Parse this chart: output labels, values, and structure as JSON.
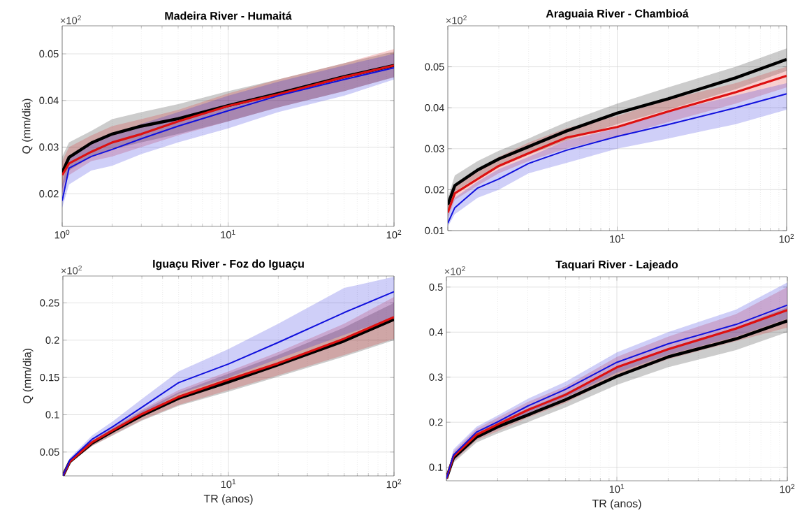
{
  "chart_data": [
    {
      "type": "line",
      "title": "Madeira River - Humaitá",
      "ylabel": "Q (mm/dia)",
      "annotations": [
        "×10$^{2}$"
      ],
      "log": "x",
      "grid": true,
      "xlim": [
        1,
        100
      ],
      "ylim": [
        0.013,
        0.056
      ],
      "xticks": [
        {
          "value": 1,
          "label": "10$^{0}$"
        },
        {
          "value": 10,
          "label": "10$^{1}$"
        },
        {
          "value": 100,
          "label": "10$^{2}$"
        }
      ],
      "yticks": [
        0.02,
        0.03,
        0.04,
        0.05
      ],
      "x": [
        1,
        1.1,
        1.5,
        2,
        3,
        5,
        10,
        20,
        50,
        100
      ],
      "series": [
        {
          "color": "#000000",
          "values": [
            0.0245,
            0.0278,
            0.0309,
            0.0328,
            0.0345,
            0.0361,
            0.0389,
            0.0415,
            0.0451,
            0.0475
          ],
          "lower": [
            0.021,
            0.025,
            0.028,
            0.0295,
            0.031,
            0.0328,
            0.0355,
            0.0385,
            0.042,
            0.045
          ],
          "upper": [
            0.028,
            0.031,
            0.0335,
            0.036,
            0.0375,
            0.0392,
            0.042,
            0.0445,
            0.048,
            0.0505
          ]
        },
        {
          "color": "#dd1111",
          "values": [
            0.024,
            0.0265,
            0.029,
            0.031,
            0.0328,
            0.0355,
            0.0388,
            0.0413,
            0.045,
            0.0475
          ],
          "lower": [
            0.02,
            0.024,
            0.027,
            0.028,
            0.03,
            0.0325,
            0.0355,
            0.0385,
            0.042,
            0.045
          ],
          "upper": [
            0.027,
            0.03,
            0.0325,
            0.0345,
            0.036,
            0.038,
            0.0415,
            0.0445,
            0.048,
            0.051
          ]
        },
        {
          "color": "#1010dd",
          "values": [
            0.0185,
            0.0255,
            0.028,
            0.0295,
            0.0318,
            0.0345,
            0.0378,
            0.041,
            0.0445,
            0.047
          ],
          "lower": [
            0.017,
            0.022,
            0.025,
            0.026,
            0.0285,
            0.031,
            0.034,
            0.0375,
            0.041,
            0.0445
          ],
          "upper": [
            0.022,
            0.028,
            0.031,
            0.0325,
            0.035,
            0.0375,
            0.041,
            0.044,
            0.0475,
            0.05
          ]
        }
      ]
    },
    {
      "type": "line",
      "title": "Araguaia River - Chambioá",
      "annotations": [
        "×10$^{2}$"
      ],
      "log": "x",
      "grid": true,
      "xlim": [
        1,
        100
      ],
      "ylim": [
        0.01,
        0.06
      ],
      "xticks": [
        {
          "value": 1,
          "label": null
        },
        {
          "value": 10,
          "label": "10$^{1}$"
        },
        {
          "value": 100,
          "label": "10$^{2}$"
        }
      ],
      "yticks": [
        0.01,
        0.02,
        0.03,
        0.04,
        0.05
      ],
      "x": [
        1,
        1.1,
        1.5,
        2,
        3,
        5,
        10,
        20,
        50,
        100
      ],
      "series": [
        {
          "color": "#000000",
          "values": [
            0.0163,
            0.021,
            0.0248,
            0.0275,
            0.0305,
            0.0343,
            0.0387,
            0.0422,
            0.0473,
            0.0518
          ],
          "lower": [
            0.015,
            0.0195,
            0.023,
            0.0255,
            0.0285,
            0.032,
            0.036,
            0.0395,
            0.0445,
            0.049
          ],
          "upper": [
            0.018,
            0.0235,
            0.027,
            0.0295,
            0.0325,
            0.0365,
            0.041,
            0.045,
            0.05,
            0.0545
          ]
        },
        {
          "color": "#dd1111",
          "values": [
            0.0144,
            0.0191,
            0.0226,
            0.0258,
            0.0289,
            0.0327,
            0.0353,
            0.0391,
            0.0438,
            0.0478
          ],
          "lower": [
            0.013,
            0.0175,
            0.021,
            0.024,
            0.027,
            0.03,
            0.033,
            0.0365,
            0.041,
            0.045
          ],
          "upper": [
            0.016,
            0.021,
            0.025,
            0.028,
            0.0315,
            0.035,
            0.038,
            0.042,
            0.046,
            0.05
          ]
        },
        {
          "color": "#1010dd",
          "values": [
            0.0118,
            0.0156,
            0.0204,
            0.0226,
            0.0264,
            0.0296,
            0.033,
            0.0359,
            0.04,
            0.0434
          ],
          "lower": [
            0.011,
            0.014,
            0.018,
            0.02,
            0.024,
            0.0265,
            0.03,
            0.0325,
            0.036,
            0.0395
          ],
          "upper": [
            0.014,
            0.018,
            0.022,
            0.025,
            0.028,
            0.032,
            0.035,
            0.039,
            0.043,
            0.046
          ]
        }
      ]
    },
    {
      "type": "line",
      "title": "Iguaçu River - Foz do Iguaçu",
      "xlabel": "TR (anos)",
      "ylabel": "Q (mm/dia)",
      "annotations": [
        "×10$^{2}$"
      ],
      "log": "x",
      "grid": true,
      "xlim": [
        1,
        100
      ],
      "ylim": [
        0.018,
        0.286
      ],
      "xticks": [
        {
          "value": 1,
          "label": null
        },
        {
          "value": 10,
          "label": "10$^{1}$"
        },
        {
          "value": 100,
          "label": "10$^{2}$"
        }
      ],
      "yticks": [
        0.05,
        0.1,
        0.15,
        0.2,
        0.25
      ],
      "x": [
        1,
        1.1,
        1.5,
        2,
        3,
        5,
        10,
        20,
        50,
        100
      ],
      "series": [
        {
          "color": "#000000",
          "values": [
            0.018,
            0.037,
            0.062,
            0.078,
            0.099,
            0.122,
            0.144,
            0.167,
            0.199,
            0.228
          ],
          "lower": [
            0.018,
            0.035,
            0.058,
            0.072,
            0.092,
            0.112,
            0.131,
            0.151,
            0.178,
            0.2
          ],
          "upper": [
            0.019,
            0.039,
            0.065,
            0.082,
            0.105,
            0.13,
            0.155,
            0.18,
            0.217,
            0.25
          ]
        },
        {
          "color": "#dd1111",
          "values": [
            0.018,
            0.037,
            0.063,
            0.079,
            0.101,
            0.124,
            0.147,
            0.169,
            0.202,
            0.231
          ],
          "lower": [
            0.018,
            0.035,
            0.058,
            0.073,
            0.093,
            0.113,
            0.133,
            0.153,
            0.18,
            0.202
          ],
          "upper": [
            0.019,
            0.039,
            0.066,
            0.083,
            0.107,
            0.133,
            0.158,
            0.184,
            0.222,
            0.258
          ]
        },
        {
          "color": "#1010dd",
          "values": [
            0.018,
            0.039,
            0.067,
            0.084,
            0.11,
            0.143,
            0.168,
            0.197,
            0.237,
            0.265
          ],
          "lower": [
            0.018,
            0.036,
            0.062,
            0.077,
            0.1,
            0.128,
            0.15,
            0.175,
            0.207,
            0.23
          ],
          "upper": [
            0.02,
            0.042,
            0.072,
            0.091,
            0.121,
            0.158,
            0.188,
            0.222,
            0.27,
            0.285
          ]
        }
      ]
    },
    {
      "type": "line",
      "title": "Taquari River - Lajeado",
      "xlabel": "TR (anos)",
      "annotations": [
        "×10$^{2}$"
      ],
      "log": "x",
      "grid": true,
      "xlim": [
        1,
        100
      ],
      "ylim": [
        0.07,
        0.523
      ],
      "xticks": [
        {
          "value": 1,
          "label": null
        },
        {
          "value": 10,
          "label": "10$^{1}$"
        },
        {
          "value": 100,
          "label": "10$^{2}$"
        }
      ],
      "yticks": [
        0.1,
        0.2,
        0.3,
        0.4,
        0.5
      ],
      "x": [
        1,
        1.1,
        1.5,
        2,
        3,
        5,
        10,
        20,
        50,
        100
      ],
      "series": [
        {
          "color": "#000000",
          "values": [
            0.075,
            0.121,
            0.167,
            0.19,
            0.216,
            0.25,
            0.302,
            0.345,
            0.385,
            0.425
          ],
          "lower": [
            0.072,
            0.11,
            0.155,
            0.175,
            0.2,
            0.233,
            0.283,
            0.322,
            0.36,
            0.4
          ],
          "upper": [
            0.08,
            0.13,
            0.178,
            0.2,
            0.23,
            0.265,
            0.32,
            0.365,
            0.41,
            0.455
          ]
        },
        {
          "color": "#dd1111",
          "values": [
            0.075,
            0.124,
            0.172,
            0.195,
            0.227,
            0.261,
            0.322,
            0.362,
            0.408,
            0.449
          ],
          "lower": [
            0.072,
            0.113,
            0.16,
            0.18,
            0.21,
            0.243,
            0.3,
            0.34,
            0.38,
            0.41
          ],
          "upper": [
            0.08,
            0.135,
            0.185,
            0.21,
            0.245,
            0.28,
            0.345,
            0.39,
            0.44,
            0.5
          ]
        },
        {
          "color": "#1010dd",
          "values": [
            0.075,
            0.127,
            0.178,
            0.201,
            0.236,
            0.273,
            0.333,
            0.374,
            0.417,
            0.46
          ],
          "lower": [
            0.072,
            0.115,
            0.163,
            0.185,
            0.22,
            0.255,
            0.31,
            0.35,
            0.39,
            0.43
          ],
          "upper": [
            0.08,
            0.14,
            0.19,
            0.215,
            0.252,
            0.29,
            0.355,
            0.4,
            0.45,
            0.51
          ]
        }
      ]
    }
  ]
}
